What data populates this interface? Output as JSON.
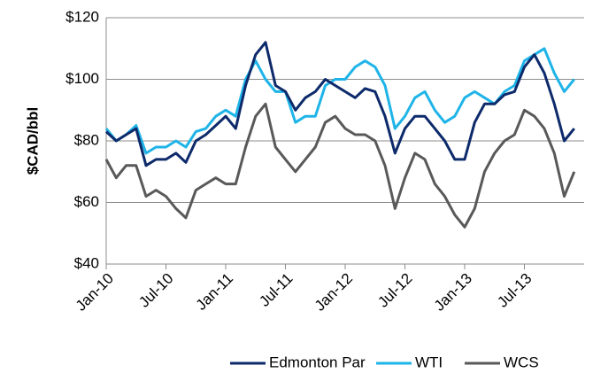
{
  "chart_data": {
    "type": "line",
    "ylabel": "$CAD/bbl",
    "categories": [
      "Jan-10",
      null,
      null,
      null,
      null,
      null,
      "Jul-10",
      null,
      null,
      null,
      null,
      null,
      "Jan-11",
      null,
      null,
      null,
      null,
      null,
      "Jul-11",
      null,
      null,
      null,
      null,
      null,
      "Jan-12",
      null,
      null,
      null,
      null,
      null,
      "Jul-12",
      null,
      null,
      null,
      null,
      null,
      "Jan-13",
      null,
      null,
      null,
      null,
      null,
      "Jul-13",
      null,
      null,
      null,
      null,
      null
    ],
    "series": [
      {
        "name": "Edmonton Par",
        "color": "#0d2a6b",
        "values": [
          83,
          80,
          82,
          84,
          72,
          74,
          74,
          76,
          73,
          80,
          82,
          85,
          88,
          84,
          98,
          108,
          112,
          98,
          96,
          90,
          94,
          96,
          100,
          98,
          96,
          94,
          97,
          96,
          88,
          76,
          84,
          88,
          88,
          84,
          80,
          74,
          74,
          86,
          92,
          92,
          95,
          96,
          104,
          108,
          102,
          92,
          80,
          84
        ]
      },
      {
        "name": "WTI",
        "color": "#1fb4e8",
        "values": [
          84,
          80,
          82,
          85,
          76,
          78,
          78,
          80,
          78,
          83,
          84,
          88,
          90,
          88,
          100,
          106,
          100,
          96,
          96,
          86,
          88,
          88,
          98,
          100,
          100,
          104,
          106,
          104,
          98,
          84,
          88,
          94,
          96,
          90,
          86,
          88,
          94,
          96,
          94,
          92,
          96,
          98,
          106,
          108,
          110,
          102,
          96,
          100
        ]
      },
      {
        "name": "WCS",
        "color": "#595959",
        "values": [
          74,
          68,
          72,
          72,
          62,
          64,
          62,
          58,
          55,
          64,
          66,
          68,
          66,
          66,
          78,
          88,
          92,
          78,
          74,
          70,
          74,
          78,
          86,
          88,
          84,
          82,
          82,
          80,
          72,
          58,
          68,
          76,
          74,
          66,
          62,
          56,
          52,
          58,
          70,
          76,
          80,
          82,
          90,
          88,
          84,
          76,
          62,
          70
        ]
      }
    ],
    "ylim": [
      40,
      120
    ],
    "yticks": [
      {
        "value": 40,
        "label": "$40"
      },
      {
        "value": 60,
        "label": "$60"
      },
      {
        "value": 80,
        "label": "$80"
      },
      {
        "value": 100,
        "label": "$100"
      },
      {
        "value": 120,
        "label": "$120"
      }
    ],
    "grid": true,
    "legend": "bottom"
  }
}
